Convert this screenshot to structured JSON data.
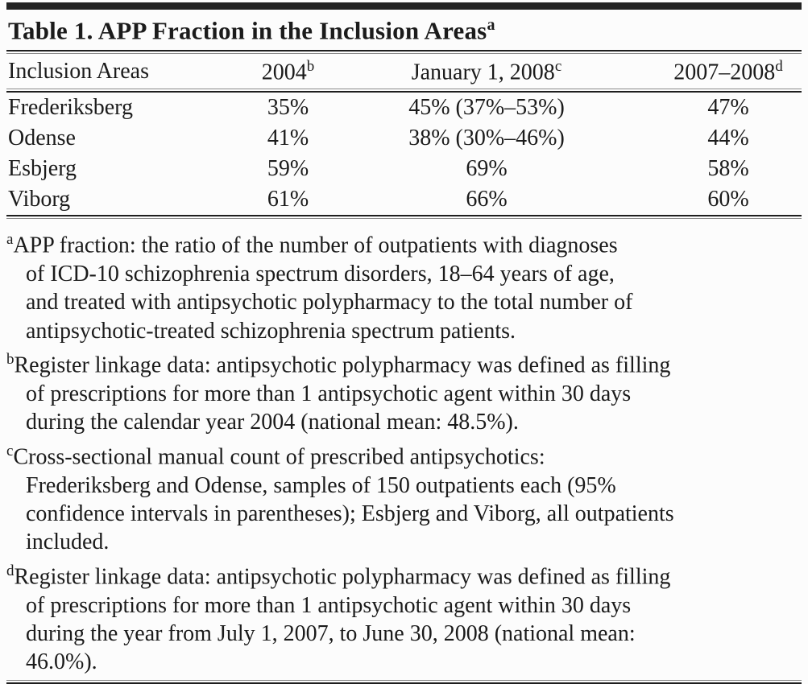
{
  "page": {
    "background": "#fcfcfc",
    "text_color": "#1b1b1b",
    "rule_color": "#1e1e1e"
  },
  "table": {
    "title": "Table 1. APP Fraction in the Inclusion Areas",
    "title_sup": "a",
    "headers": [
      {
        "label": "Inclusion Areas",
        "sup": ""
      },
      {
        "label": "2004",
        "sup": "b"
      },
      {
        "label": "January 1, 2008",
        "sup": "c"
      },
      {
        "label": "2007–2008",
        "sup": "d"
      }
    ],
    "rows": [
      {
        "area": "Frederiksberg",
        "col_2004": "35%",
        "col_jan_2008": "45% (37%–53%)",
        "col_2007_2008": "47%"
      },
      {
        "area": "Odense",
        "col_2004": "41%",
        "col_jan_2008": "38% (30%–46%)",
        "col_2007_2008": "44%"
      },
      {
        "area": "Esbjerg",
        "col_2004": "59%",
        "col_jan_2008": "69%",
        "col_2007_2008": "58%"
      },
      {
        "area": "Viborg",
        "col_2004": "61%",
        "col_jan_2008": "66%",
        "col_2007_2008": "60%"
      }
    ]
  },
  "footnotes": [
    {
      "marker": "a",
      "lines": [
        "APP fraction: the ratio of the number of outpatients with diagnoses",
        "of ICD-10 schizophrenia spectrum disorders, 18–64 years of age,",
        "and treated with antipsychotic polypharmacy to the total number of",
        "antipsychotic-treated schizophrenia spectrum patients."
      ]
    },
    {
      "marker": "b",
      "lines": [
        "Register linkage data: antipsychotic polypharmacy was defined as filling",
        "of prescriptions for more than 1 antipsychotic agent within 30 days",
        "during the calendar year 2004 (national mean: 48.5%)."
      ]
    },
    {
      "marker": "c",
      "lines": [
        "Cross-sectional manual count of prescribed antipsychotics:",
        "Frederiksberg and Odense, samples of 150 outpatients each (95%",
        "confidence intervals in parentheses); Esbjerg and Viborg, all outpatients",
        "included."
      ]
    },
    {
      "marker": "d",
      "lines": [
        "Register linkage data: antipsychotic polypharmacy was defined as filling",
        "of prescriptions for more than 1 antipsychotic agent within 30 days",
        "during the year from July 1, 2007, to June 30, 2008 (national mean:",
        "46.0%)."
      ]
    }
  ]
}
